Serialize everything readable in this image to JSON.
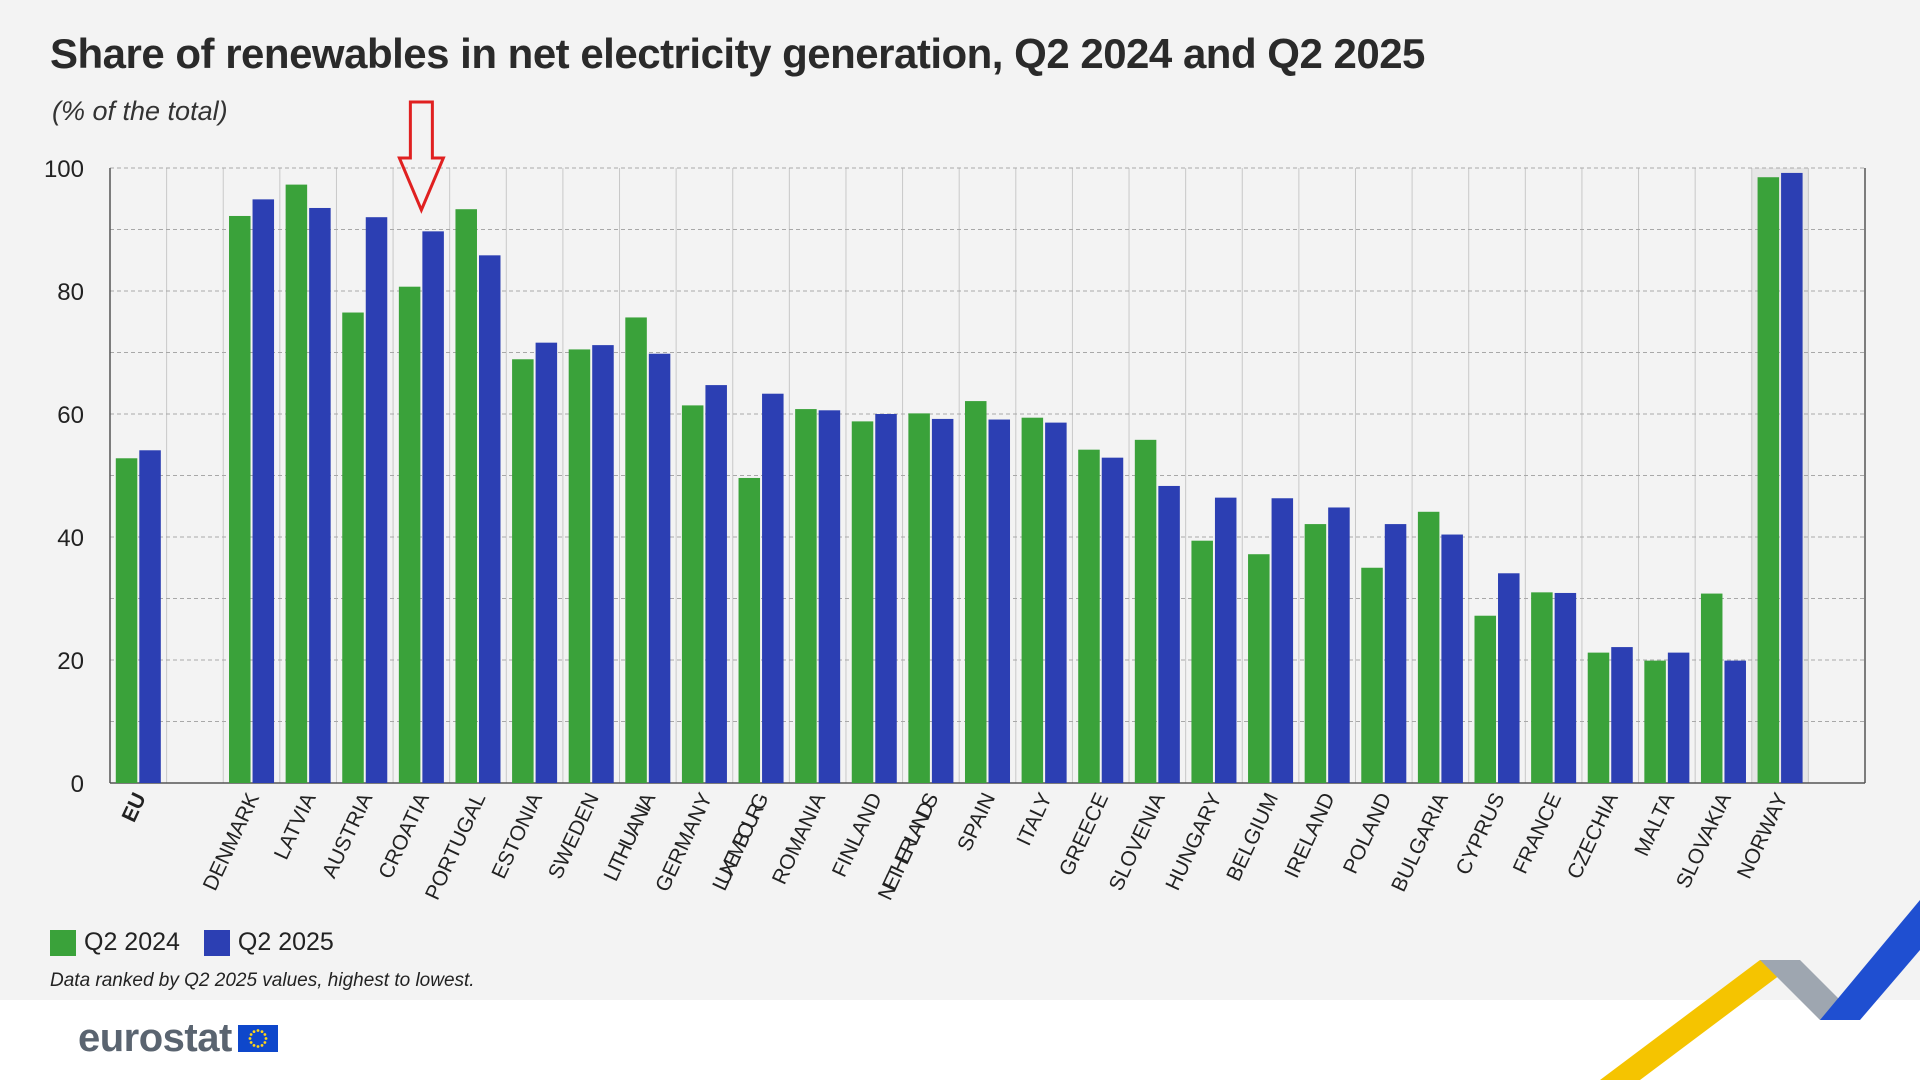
{
  "header": {
    "title": "Share of renewables in net electricity generation, Q2 2024 and Q2 2025",
    "subtitle": "(% of the total)"
  },
  "colors": {
    "q2_2024": "#3aa23a",
    "q2_2025": "#2c3fb3",
    "annotation_arrow": "#e02020",
    "background": "#f3f3f3"
  },
  "legend": {
    "items": [
      {
        "label": "Q2 2024"
      },
      {
        "label": "Q2 2025"
      }
    ]
  },
  "footnote": "Data ranked by Q2 2025 values, highest to lowest.",
  "logo": {
    "text": "eurostat"
  },
  "annotation": {
    "type": "arrow",
    "points_to": "CROATIA"
  },
  "chart_data": {
    "type": "bar",
    "categories": [
      "EU",
      "DENMARK",
      "LATVIA",
      "AUSTRIA",
      "CROATIA",
      "PORTUGAL",
      "ESTONIA",
      "SWEDEN",
      "LITHUANIA",
      "GERMANY",
      "LUXEMBOURG",
      "ROMANIA",
      "FINLAND",
      "NETHERLANDS",
      "SPAIN",
      "ITALY",
      "GREECE",
      "SLOVENIA",
      "HUNGARY",
      "BELGIUM",
      "IRELAND",
      "POLAND",
      "BULGARIA",
      "CYPRUS",
      "FRANCE",
      "CZECHIA",
      "MALTA",
      "SLOVAKIA",
      "NORWAY"
    ],
    "series": [
      {
        "name": "Q2 2024",
        "values": [
          52.8,
          92.2,
          97.3,
          76.5,
          80.7,
          93.3,
          68.9,
          70.5,
          75.7,
          61.4,
          49.6,
          60.8,
          58.8,
          60.1,
          62.1,
          59.4,
          54.2,
          55.8,
          39.4,
          37.2,
          42.1,
          35.0,
          44.1,
          27.2,
          31.0,
          21.2,
          19.9,
          30.8,
          98.5
        ]
      },
      {
        "name": "Q2 2025",
        "values": [
          54.1,
          94.9,
          93.5,
          92.0,
          89.7,
          85.8,
          71.6,
          71.2,
          69.8,
          64.7,
          63.3,
          60.6,
          60.0,
          59.2,
          59.1,
          58.6,
          52.9,
          48.3,
          46.4,
          46.3,
          44.8,
          42.1,
          40.4,
          34.1,
          30.9,
          22.1,
          21.2,
          19.9,
          99.2
        ]
      }
    ],
    "bold_categories": [
      "EU"
    ],
    "ylim": [
      0,
      100
    ],
    "yticks": [
      0,
      20,
      40,
      60,
      80,
      100
    ],
    "grid": true,
    "legend_position": "bottom-left"
  }
}
